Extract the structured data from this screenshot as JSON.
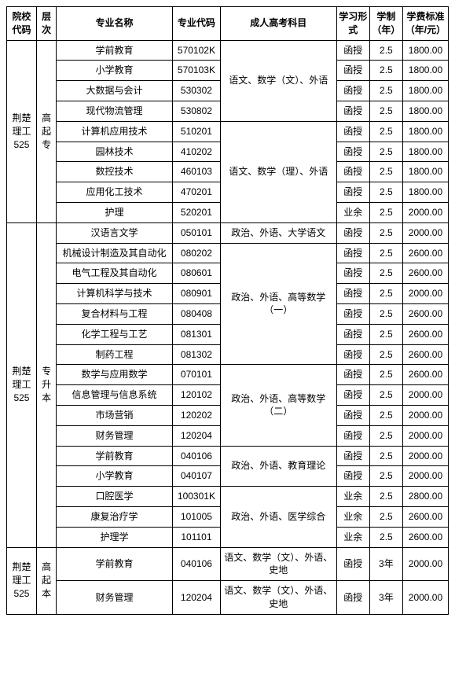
{
  "headers": {
    "institution": "院校代码",
    "level": "层次",
    "major": "专业名称",
    "majorCode": "专业代码",
    "subjects": "成人高考科目",
    "studyForm": "学习形式",
    "years": "学制（年）",
    "fee": "学费标准（年/元）"
  },
  "inst1": {
    "name": "荆楚理工",
    "code": "525"
  },
  "inst2": {
    "name": "荆楚理工",
    "code": "525"
  },
  "inst3": {
    "name": "荆楚理工",
    "code": "525"
  },
  "level1": "高起专",
  "level2": "专升本",
  "level3": "高起本",
  "subjGroup1": "语文、数学（文）、外语",
  "subjGroup2": "语文、数学（理）、外语",
  "subjGroup3": "政治、外语、大学语文",
  "subjGroup4": "政治、外语、高等数学（一）",
  "subjGroup5": "政治、外语、高等数学（二）",
  "subjGroup6": "政治、外语、教育理论",
  "subjGroup7": "政治、外语、医学综合",
  "subjGroup8": "语文、数学（文）、外语、史地",
  "subjGroup9": "语文、数学（文）、外语、史地",
  "rows": {
    "r1": {
      "major": "学前教育",
      "code": "570102K",
      "form": "函授",
      "years": "2.5",
      "fee": "1800.00"
    },
    "r2": {
      "major": "小学教育",
      "code": "570103K",
      "form": "函授",
      "years": "2.5",
      "fee": "1800.00"
    },
    "r3": {
      "major": "大数据与会计",
      "code": "530302",
      "form": "函授",
      "years": "2.5",
      "fee": "1800.00"
    },
    "r4": {
      "major": "现代物流管理",
      "code": "530802",
      "form": "函授",
      "years": "2.5",
      "fee": "1800.00"
    },
    "r5": {
      "major": "计算机应用技术",
      "code": "510201",
      "form": "函授",
      "years": "2.5",
      "fee": "1800.00"
    },
    "r6": {
      "major": "园林技术",
      "code": "410202",
      "form": "函授",
      "years": "2.5",
      "fee": "1800.00"
    },
    "r7": {
      "major": "数控技术",
      "code": "460103",
      "form": "函授",
      "years": "2.5",
      "fee": "1800.00"
    },
    "r8": {
      "major": "应用化工技术",
      "code": "470201",
      "form": "函授",
      "years": "2.5",
      "fee": "1800.00"
    },
    "r9": {
      "major": "护理",
      "code": "520201",
      "form": "业余",
      "years": "2.5",
      "fee": "2000.00"
    },
    "r10": {
      "major": "汉语言文学",
      "code": "050101",
      "form": "函授",
      "years": "2.5",
      "fee": "2000.00"
    },
    "r11": {
      "major": "机械设计制造及其自动化",
      "code": "080202",
      "form": "函授",
      "years": "2.5",
      "fee": "2600.00"
    },
    "r12": {
      "major": "电气工程及其自动化",
      "code": "080601",
      "form": "函授",
      "years": "2.5",
      "fee": "2600.00"
    },
    "r13": {
      "major": "计算机科学与技术",
      "code": "080901",
      "form": "函授",
      "years": "2.5",
      "fee": "2000.00"
    },
    "r14": {
      "major": "复合材料与工程",
      "code": "080408",
      "form": "函授",
      "years": "2.5",
      "fee": "2600.00"
    },
    "r15": {
      "major": "化学工程与工艺",
      "code": "081301",
      "form": "函授",
      "years": "2.5",
      "fee": "2600.00"
    },
    "r16": {
      "major": "制药工程",
      "code": "081302",
      "form": "函授",
      "years": "2.5",
      "fee": "2600.00"
    },
    "r17": {
      "major": "数学与应用数学",
      "code": "070101",
      "form": "函授",
      "years": "2.5",
      "fee": "2600.00"
    },
    "r18": {
      "major": "信息管理与信息系统",
      "code": "120102",
      "form": "函授",
      "years": "2.5",
      "fee": "2000.00"
    },
    "r19": {
      "major": "市场营销",
      "code": "120202",
      "form": "函授",
      "years": "2.5",
      "fee": "2000.00"
    },
    "r20": {
      "major": "财务管理",
      "code": "120204",
      "form": "函授",
      "years": "2.5",
      "fee": "2000.00"
    },
    "r21": {
      "major": "学前教育",
      "code": "040106",
      "form": "函授",
      "years": "2.5",
      "fee": "2000.00"
    },
    "r22": {
      "major": "小学教育",
      "code": "040107",
      "form": "函授",
      "years": "2.5",
      "fee": "2000.00"
    },
    "r23": {
      "major": "口腔医学",
      "code": "100301K",
      "form": "业余",
      "years": "2.5",
      "fee": "2800.00"
    },
    "r24": {
      "major": "康复治疗学",
      "code": "101005",
      "form": "业余",
      "years": "2.5",
      "fee": "2600.00"
    },
    "r25": {
      "major": "护理学",
      "code": "101101",
      "form": "业余",
      "years": "2.5",
      "fee": "2600.00"
    },
    "r26": {
      "major": "学前教育",
      "code": "040106",
      "form": "函授",
      "years": "3年",
      "fee": "2000.00"
    },
    "r27": {
      "major": "财务管理",
      "code": "120204",
      "form": "函授",
      "years": "3年",
      "fee": "2000.00"
    }
  }
}
